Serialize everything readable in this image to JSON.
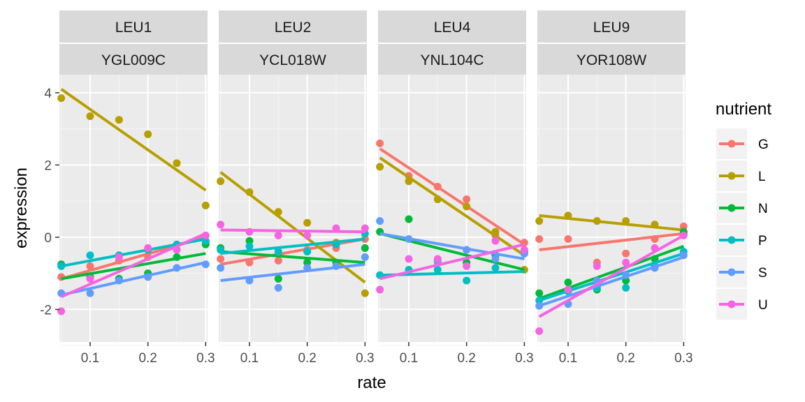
{
  "chart_data": {
    "type": "scatter",
    "xlabel": "rate",
    "ylabel": "expression",
    "xlim": [
      0.05,
      0.3
    ],
    "ylim": [
      -2.9,
      4.5
    ],
    "x_ticks": [
      "0.1",
      "0.2",
      "0.3"
    ],
    "y_ticks": [
      "-2",
      "0",
      "2",
      "4"
    ],
    "grid": true,
    "legend": {
      "title": "nutrient",
      "placement": "right",
      "entries": [
        "G",
        "L",
        "N",
        "P",
        "S",
        "U"
      ]
    },
    "colors": {
      "G": "#F8766D",
      "L": "#B79F00",
      "N": "#00BA38",
      "P": "#00BFC4",
      "S": "#619CFF",
      "U": "#F564E3"
    },
    "x": [
      0.05,
      0.1,
      0.15,
      0.2,
      0.25,
      0.3
    ],
    "facets": [
      {
        "strip_top": "LEU1",
        "strip_bottom": "YGL009C",
        "series": [
          {
            "name": "G",
            "points": [
              -1.1,
              -0.8,
              -0.65,
              -0.55,
              -0.35,
              -0.15
            ],
            "fit": [
              -1.15,
              0.0
            ]
          },
          {
            "name": "L",
            "points": [
              3.85,
              3.35,
              3.25,
              2.85,
              2.05,
              0.88
            ],
            "fit": [
              4.1,
              1.3
            ]
          },
          {
            "name": "N",
            "points": [
              -0.75,
              -1.1,
              -1.15,
              -1.0,
              -0.55,
              -0.2
            ],
            "fit": [
              -1.15,
              -0.45
            ]
          },
          {
            "name": "P",
            "points": [
              -0.8,
              -0.5,
              -0.5,
              -0.35,
              -0.2,
              -0.1
            ],
            "fit": [
              -0.8,
              -0.05
            ]
          },
          {
            "name": "S",
            "points": [
              -1.55,
              -1.55,
              -1.2,
              -1.1,
              -0.85,
              -0.75
            ],
            "fit": [
              -1.6,
              -0.7
            ]
          },
          {
            "name": "U",
            "points": [
              -2.05,
              -1.15,
              -0.55,
              -0.3,
              -0.35,
              0.05
            ],
            "fit": [
              -1.65,
              0.1
            ]
          }
        ]
      },
      {
        "strip_top": "LEU2",
        "strip_bottom": "YCL018W",
        "series": [
          {
            "name": "G",
            "points": [
              -0.6,
              -0.7,
              -0.65,
              -0.35,
              -0.3,
              -0.05
            ],
            "fit": [
              -0.75,
              -0.05
            ]
          },
          {
            "name": "L",
            "points": [
              1.55,
              1.25,
              0.7,
              0.4,
              -0.15,
              -1.55
            ],
            "fit": [
              1.8,
              -1.25
            ]
          },
          {
            "name": "N",
            "points": [
              -0.3,
              -0.1,
              -1.15,
              -0.7,
              -0.7,
              -0.3
            ],
            "fit": [
              -0.4,
              -0.7
            ]
          },
          {
            "name": "P",
            "points": [
              -0.35,
              -0.25,
              -0.4,
              -0.4,
              -0.2,
              0.1
            ],
            "fit": [
              -0.45,
              -0.05
            ]
          },
          {
            "name": "S",
            "points": [
              -0.85,
              -1.2,
              -1.4,
              -0.85,
              -0.8,
              -0.55
            ],
            "fit": [
              -1.2,
              -0.75
            ]
          },
          {
            "name": "U",
            "points": [
              0.35,
              0.15,
              0.05,
              0.05,
              0.25,
              0.25
            ],
            "fit": [
              0.2,
              0.15
            ]
          }
        ]
      },
      {
        "strip_top": "LEU4",
        "strip_bottom": "YNL104C",
        "series": [
          {
            "name": "G",
            "points": [
              2.6,
              1.7,
              1.4,
              1.05,
              0.05,
              -0.15
            ],
            "fit": [
              2.45,
              -0.2
            ]
          },
          {
            "name": "L",
            "points": [
              1.95,
              1.55,
              1.05,
              0.85,
              0.15,
              -0.9
            ],
            "fit": [
              2.2,
              -0.5
            ]
          },
          {
            "name": "N",
            "points": [
              0.15,
              0.5,
              -0.65,
              -0.7,
              -0.5,
              -0.4
            ],
            "fit": [
              0.1,
              -0.9
            ]
          },
          {
            "name": "P",
            "points": [
              -1.05,
              -0.9,
              -0.9,
              -1.2,
              -0.85,
              -0.45
            ],
            "fit": [
              -1.05,
              -0.95
            ]
          },
          {
            "name": "S",
            "points": [
              0.45,
              -0.05,
              -0.7,
              -0.35,
              -0.6,
              -0.45
            ],
            "fit": [
              0.1,
              -0.6
            ]
          },
          {
            "name": "U",
            "points": [
              -1.45,
              -0.6,
              -0.6,
              -0.8,
              -0.1,
              -0.35
            ],
            "fit": [
              -1.15,
              -0.2
            ]
          }
        ]
      },
      {
        "strip_top": "LEU9",
        "strip_bottom": "YOR108W",
        "series": [
          {
            "name": "G",
            "points": [
              -0.05,
              -0.05,
              -0.7,
              -0.45,
              -0.05,
              0.3
            ],
            "fit": [
              -0.35,
              0.1
            ]
          },
          {
            "name": "L",
            "points": [
              0.45,
              0.6,
              0.45,
              0.45,
              0.35,
              0.1
            ],
            "fit": [
              0.6,
              0.2
            ]
          },
          {
            "name": "N",
            "points": [
              -1.55,
              -1.25,
              -1.45,
              -1.2,
              -0.6,
              0.15
            ],
            "fit": [
              -1.7,
              -0.25
            ]
          },
          {
            "name": "P",
            "points": [
              -1.75,
              -1.5,
              -1.4,
              -1.4,
              -0.8,
              -0.4
            ],
            "fit": [
              -1.75,
              -0.45
            ]
          },
          {
            "name": "S",
            "points": [
              -1.9,
              -1.85,
              -1.2,
              -1.05,
              -0.85,
              -0.5
            ],
            "fit": [
              -1.9,
              -0.55
            ]
          },
          {
            "name": "U",
            "points": [
              -2.6,
              -1.45,
              -0.8,
              -0.7,
              -0.3,
              0.05
            ],
            "fit": [
              -2.2,
              0.05
            ]
          }
        ]
      }
    ]
  }
}
